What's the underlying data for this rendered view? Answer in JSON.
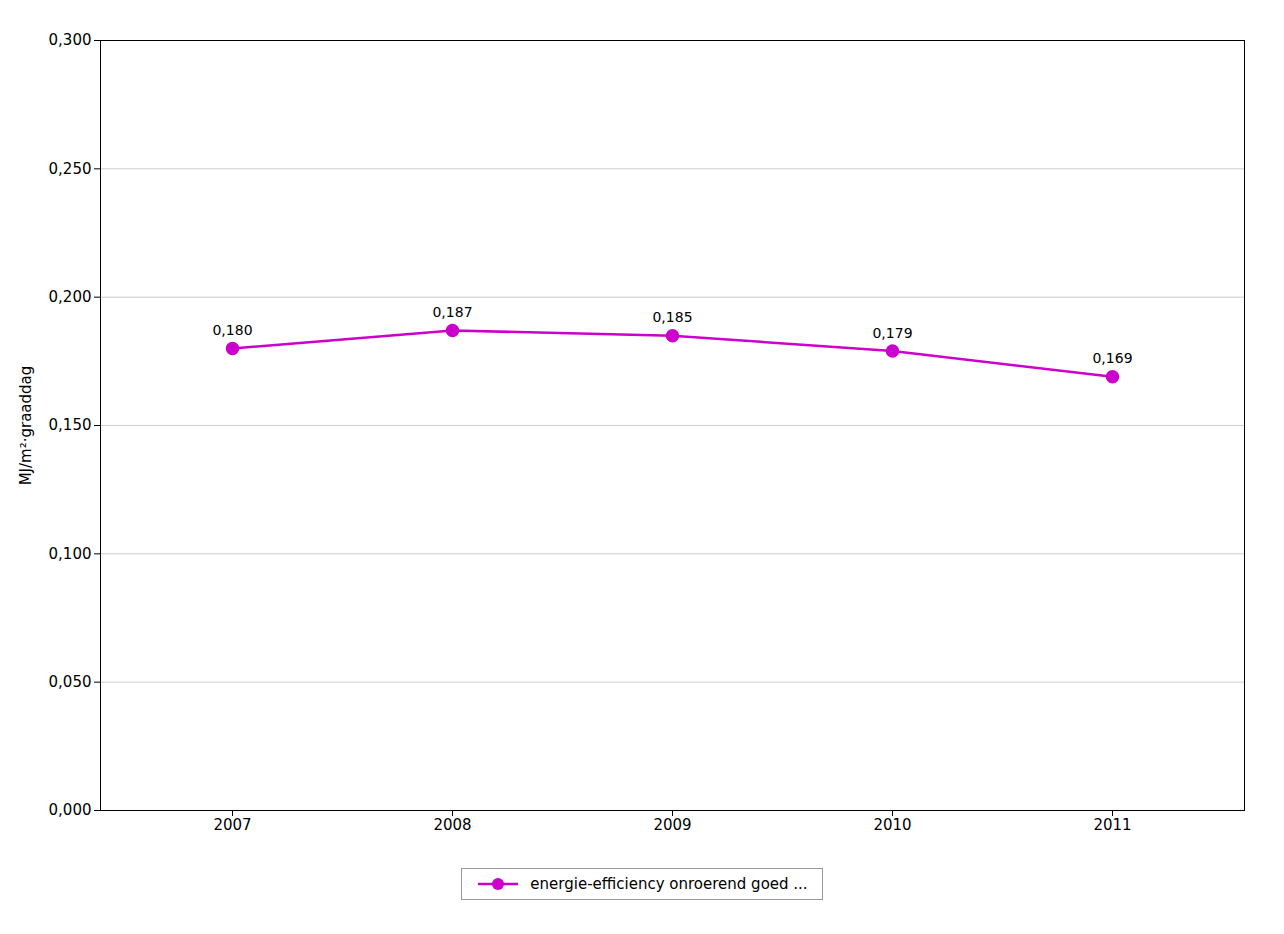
{
  "chart_data": {
    "type": "line",
    "x": [
      2007,
      2008,
      2009,
      2010,
      2011
    ],
    "series": [
      {
        "name": "energie-efficiency onroerend goed ...",
        "color": "#CC00CC",
        "values": [
          0.18,
          0.187,
          0.185,
          0.179,
          0.169
        ],
        "value_labels": [
          "0,180",
          "0,187",
          "0,185",
          "0,179",
          "0,169"
        ],
        "marker": "circle"
      }
    ],
    "ylabel": "MJ/m²·graaddag",
    "xlim": [
      2006.4,
      2011.6
    ],
    "xticks": [
      2007,
      2008,
      2009,
      2010,
      2011
    ],
    "ylim": [
      0.0,
      0.3
    ],
    "yticks": [
      {
        "value": 0.0,
        "label": "0,000"
      },
      {
        "value": 0.05,
        "label": "0,050"
      },
      {
        "value": 0.1,
        "label": "0,100"
      },
      {
        "value": 0.15,
        "label": "0,150"
      },
      {
        "value": 0.2,
        "label": "0,200"
      },
      {
        "value": 0.25,
        "label": "0,250"
      },
      {
        "value": 0.3,
        "label": "0,300"
      }
    ],
    "grid": true,
    "data_labels": true,
    "legend": "bottom"
  }
}
